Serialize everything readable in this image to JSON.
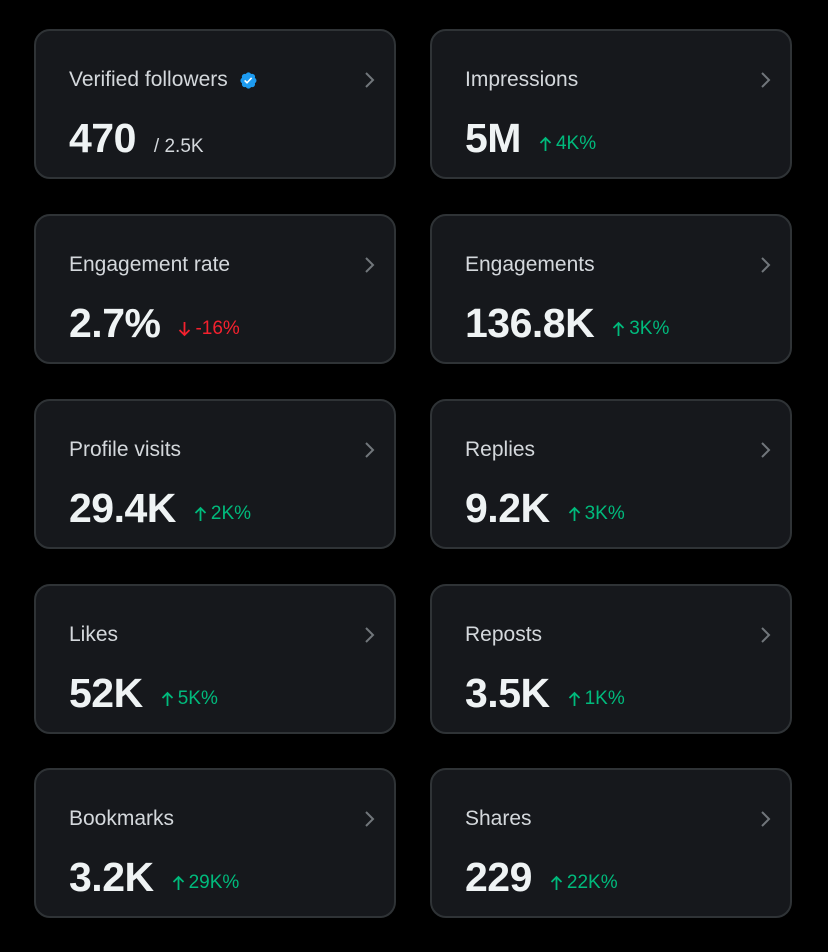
{
  "colors": {
    "background": "#000000",
    "card": "#16181c",
    "border": "#2f3336",
    "positive": "#00ba7c",
    "negative": "#f4212e",
    "verified": "#1d9bf0"
  },
  "cards": [
    {
      "label": "Verified followers",
      "value": "470",
      "sub": "/ 2.5K",
      "verified_icon": "verified-badge-icon"
    },
    {
      "label": "Impressions",
      "value": "5M",
      "change": "4K%",
      "direction": "up"
    },
    {
      "label": "Engagement rate",
      "value": "2.7%",
      "change": "-16%",
      "direction": "down"
    },
    {
      "label": "Engagements",
      "value": "136.8K",
      "change": "3K%",
      "direction": "up"
    },
    {
      "label": "Profile visits",
      "value": "29.4K",
      "change": "2K%",
      "direction": "up"
    },
    {
      "label": "Replies",
      "value": "9.2K",
      "change": "3K%",
      "direction": "up"
    },
    {
      "label": "Likes",
      "value": "52K",
      "change": "5K%",
      "direction": "up"
    },
    {
      "label": "Reposts",
      "value": "3.5K",
      "change": "1K%",
      "direction": "up"
    },
    {
      "label": "Bookmarks",
      "value": "3.2K",
      "change": "29K%",
      "direction": "up"
    },
    {
      "label": "Shares",
      "value": "229",
      "change": "22K%",
      "direction": "up"
    }
  ]
}
